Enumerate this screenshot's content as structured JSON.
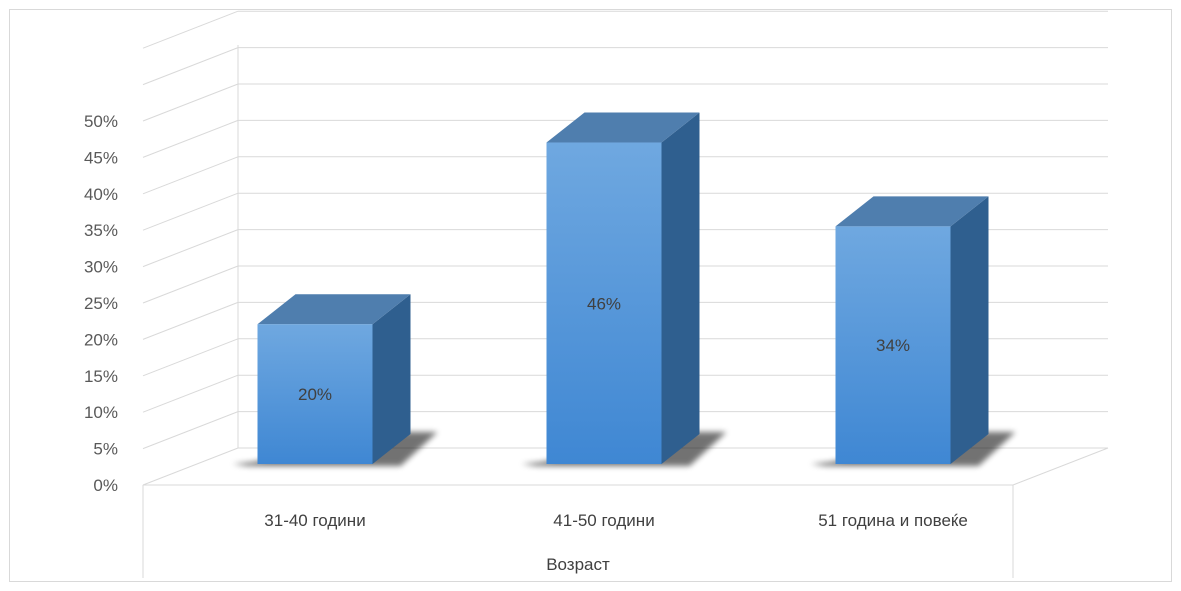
{
  "chart_data": {
    "type": "bar",
    "title": "",
    "xlabel": "Возраст",
    "ylabel": "",
    "categories": [
      "31-40 години",
      "41-50 години",
      "51 година и повеќе"
    ],
    "values": [
      20,
      46,
      34
    ],
    "data_labels": [
      "20%",
      "46%",
      "34%"
    ],
    "ylim": [
      0,
      50
    ],
    "y_ticks": [
      "0%",
      "5%",
      "10%",
      "15%",
      "20%",
      "25%",
      "30%",
      "35%",
      "40%",
      "45%",
      "50%"
    ],
    "grid": true,
    "legend": "none",
    "style": "3d-column",
    "colors": {
      "bar_front_top": "#6fa8e0",
      "bar_front_bottom": "#3f87d3",
      "bar_side": "#2f5f8f",
      "bar_top": "#4f7eae",
      "grid": "#d9d9d9",
      "text": "#404040"
    }
  }
}
